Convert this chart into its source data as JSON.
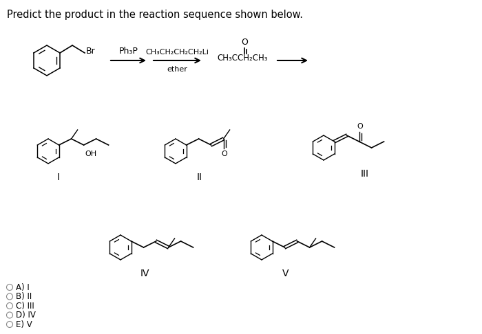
{
  "title": "Predict the product in the reaction sequence shown below.",
  "title_fontsize": 10.5,
  "background_color": "#ffffff",
  "text_color": "#000000",
  "answer_choices": [
    "A) I",
    "B) II",
    "C) III",
    "D) IV",
    "E) V"
  ],
  "reagent1_above": "Ph₃P",
  "reagent2_above": "CH₃CH₂CH₂CH₂Li",
  "reagent2_below": "ether",
  "reagent3_above": "CH₃CCH₂CH₃",
  "labels": [
    "I",
    "II",
    "III",
    "IV",
    "V"
  ]
}
